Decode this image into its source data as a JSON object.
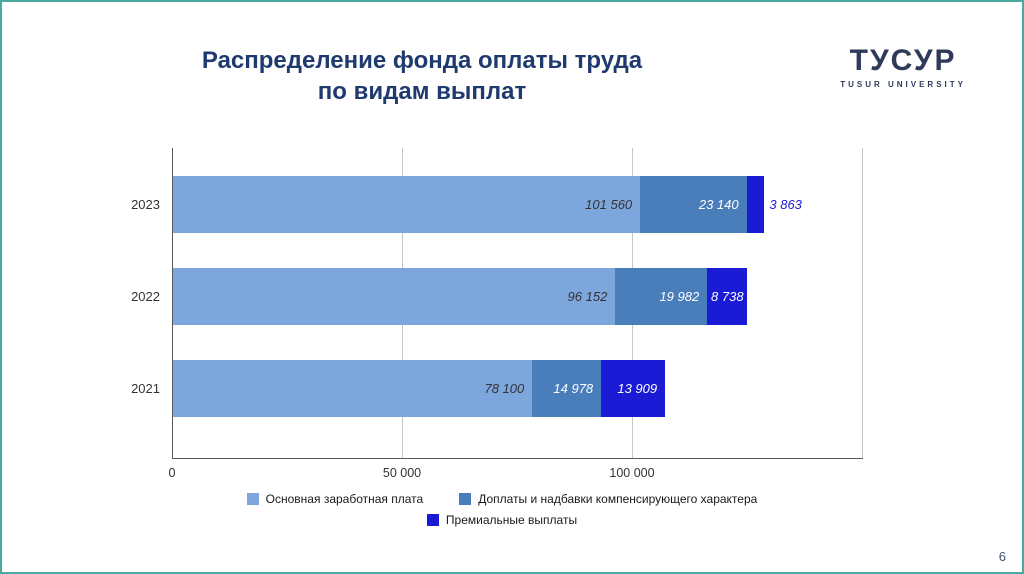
{
  "slide": {
    "title_line1": "Распределение фонда оплаты труда",
    "title_line2": "по видам выплат",
    "page_number": "6"
  },
  "logo": {
    "name": "ТУСУР",
    "subtitle": "TUSUR UNIVERSITY"
  },
  "colors": {
    "border": "#4AA89E",
    "title": "#1F3A6E",
    "logo": "#2E3A59"
  },
  "chart_data": {
    "type": "bar",
    "orientation": "horizontal",
    "stacked": true,
    "grid": true,
    "legend_position": "bottom",
    "title": "Распределение фонда оплаты труда по видам выплат",
    "categories": [
      "2023",
      "2022",
      "2021"
    ],
    "series": [
      {
        "name": "Основная заработная плата",
        "color": "#7DA7DC",
        "label_color": "#333333",
        "values": [
          101560,
          96152,
          78100
        ],
        "labels": [
          "101 560",
          "96 152",
          "78 100"
        ]
      },
      {
        "name": "Доплаты и надбавки компенсирующего характера",
        "color": "#4A7EBB",
        "label_color": "#FFFFFF",
        "values": [
          23140,
          19982,
          14978
        ],
        "labels": [
          "23 140",
          "19 982",
          "14 978"
        ]
      },
      {
        "name": "Премиальные выплаты",
        "color": "#1B1BD6",
        "label_color": "#FFFFFF",
        "outside_label_color": "#1B1BD6",
        "values": [
          3863,
          8738,
          13909
        ],
        "labels": [
          "3 863",
          "8 738",
          "13 909"
        ]
      }
    ],
    "xlim": [
      0,
      150000
    ],
    "x_axis": {
      "ticks": [
        {
          "value": 0,
          "label": "0"
        },
        {
          "value": 50000,
          "label": "50 000"
        },
        {
          "value": 100000,
          "label": "100 000"
        }
      ],
      "gridline_values": [
        50000,
        100000,
        150000
      ]
    }
  }
}
